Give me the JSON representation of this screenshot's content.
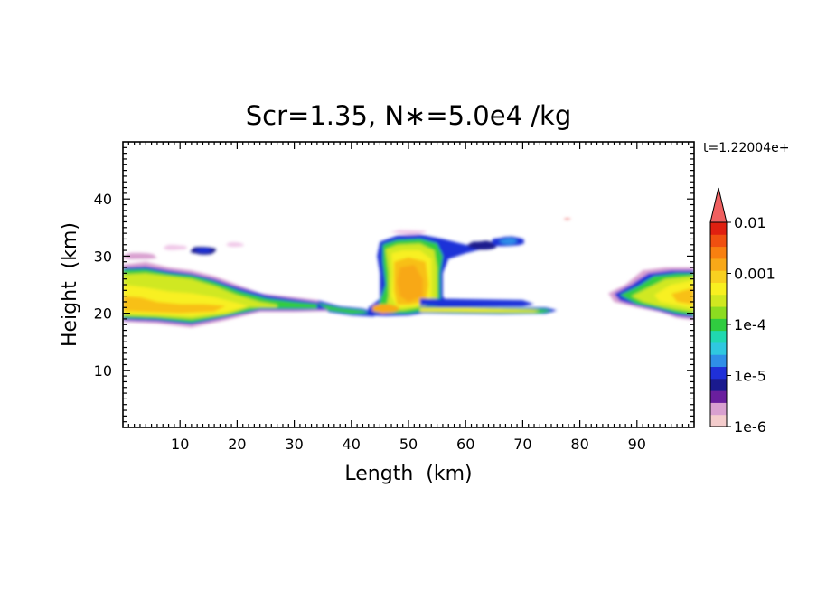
{
  "chart_data": {
    "type": "heatmap",
    "title": "Scr=1.35, N∗=5.0e4 /kg",
    "xlabel": "Length  (km)",
    "ylabel": "Height  (km)",
    "time_label": "t=1.22004e+",
    "xlim": [
      0,
      100
    ],
    "ylim": [
      0,
      50
    ],
    "x_ticks": [
      "10",
      "20",
      "30",
      "40",
      "50",
      "60",
      "70",
      "80",
      "90"
    ],
    "y_ticks": [
      "10",
      "20",
      "30",
      "40"
    ],
    "colorbar": {
      "labels": [
        "0.01",
        "0.001",
        "1e-4",
        "1e-5",
        "1e-6"
      ],
      "log_scale": true,
      "range": [
        1e-06,
        0.01
      ],
      "colors": [
        "#f4cccc",
        "#d9a0d0",
        "#6a1f9e",
        "#1a1a8e",
        "#1f30d8",
        "#2f8fe8",
        "#2fc8e0",
        "#20d8b0",
        "#30cc40",
        "#8cdc20",
        "#d0e820",
        "#f8f020",
        "#f8d020",
        "#f8a818",
        "#f88010",
        "#f05010",
        "#e02010"
      ],
      "extend_color": "#f06060"
    },
    "features": [
      {
        "name": "left-layer",
        "x_range": [
          0,
          37
        ],
        "y_range": [
          18,
          29
        ],
        "peak": "1e-3"
      },
      {
        "name": "central-column",
        "x_range": [
          41,
          58
        ],
        "y_range": [
          19,
          34
        ],
        "peak": "1e-3"
      },
      {
        "name": "right-sheet",
        "x_range": [
          52,
          76
        ],
        "y_range": [
          20,
          22
        ],
        "peak": "1e-3"
      },
      {
        "name": "right-edge-layer",
        "x_range": [
          85,
          100
        ],
        "y_range": [
          19,
          28
        ],
        "peak": "1e-3"
      }
    ]
  }
}
